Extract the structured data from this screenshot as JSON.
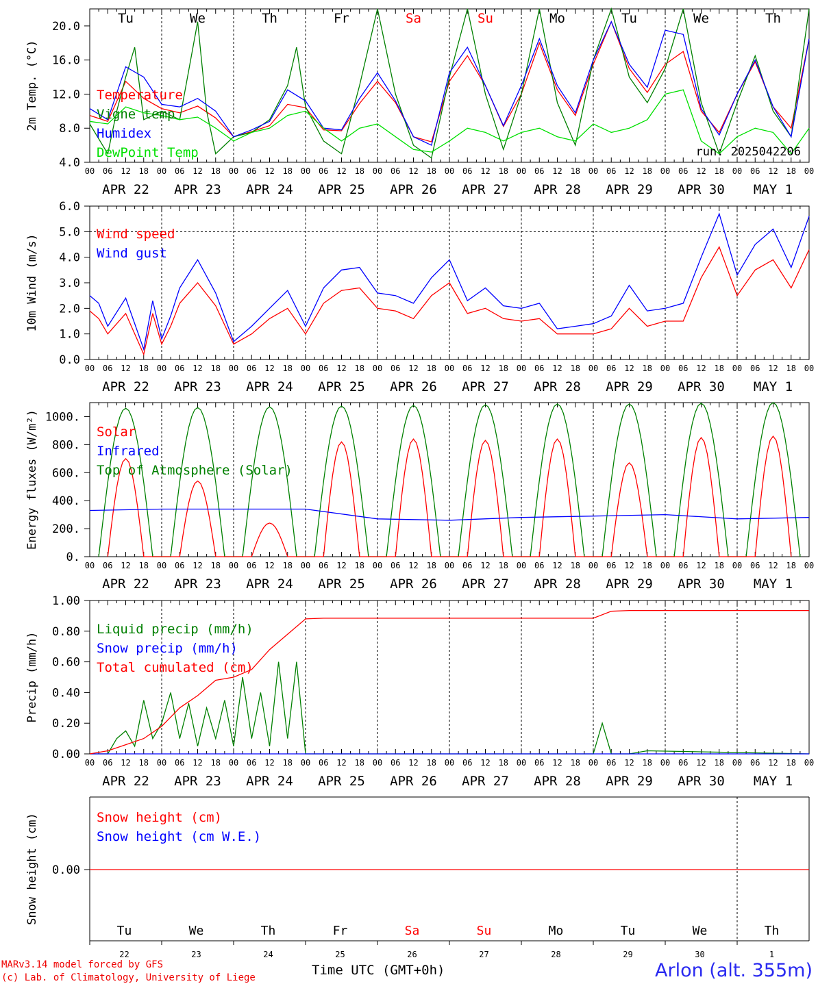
{
  "footer": {
    "model": "MARv3.14 model forced by GFS",
    "credit": "(c) Lab. of Climatology, University of Liege",
    "xaxis_title": "Time UTC (GMT+0h)",
    "station": "Arlon (alt. 355m)"
  },
  "run_label": "run: 2025042206",
  "weekdays": [
    "Tu",
    "We",
    "Th",
    "Fr",
    "Sa",
    "Su",
    "Mo",
    "Tu",
    "We",
    "Th"
  ],
  "weekend_days": [
    "Sa",
    "Su"
  ],
  "date_labels": [
    "APR 22",
    "APR 23",
    "APR 24",
    "APR 25",
    "APR 26",
    "APR 27",
    "APR 28",
    "APR 29",
    "APR 30",
    "MAY  1"
  ],
  "day_numbers": [
    "22",
    "23",
    "24",
    "25",
    "26",
    "27",
    "28",
    "29",
    "30",
    "1"
  ],
  "hour_ticks": [
    "00",
    "06",
    "12",
    "18"
  ],
  "colors": {
    "red": "#ff0000",
    "blue": "#0000ff",
    "green": "#008000",
    "lightgreen": "#00e000"
  },
  "chart_data": [
    {
      "type": "line",
      "ylabel": "2m Temp. (°C)",
      "ylim": [
        4,
        22
      ],
      "yticks": [
        "4.0",
        "8.0",
        "12.0",
        "16.0",
        "20.0"
      ],
      "x_unit": "hours since APR 22 00 UTC",
      "series": [
        {
          "name": "Temperature",
          "color": "red",
          "x": [
            0,
            6,
            12,
            18,
            24,
            30,
            36,
            42,
            48,
            54,
            60,
            66,
            72,
            78,
            84,
            90,
            96,
            102,
            108,
            114,
            120,
            126,
            132,
            138,
            144,
            150,
            156,
            162,
            168,
            174,
            180,
            186,
            192,
            198,
            204,
            210,
            216,
            222,
            228,
            234,
            240
          ],
          "values": [
            9.5,
            8.8,
            13.5,
            11.5,
            10.3,
            9.8,
            10.6,
            9.2,
            7.0,
            7.6,
            8.3,
            10.8,
            10.4,
            7.8,
            7.7,
            10.9,
            13.5,
            11.0,
            7.0,
            6.4,
            13.5,
            16.5,
            13.0,
            8.2,
            12.0,
            18.0,
            12.5,
            9.5,
            15.5,
            20.5,
            15.0,
            12.2,
            15.5,
            17.0,
            10.0,
            7.5,
            12.0,
            15.8,
            10.5,
            8.0,
            18.5
          ]
        },
        {
          "name": "Vigne temp",
          "color": "green",
          "x": [
            0,
            6,
            9,
            12,
            15,
            18,
            24,
            30,
            36,
            39,
            42,
            45,
            48,
            54,
            60,
            66,
            69,
            72,
            78,
            84,
            90,
            96,
            102,
            108,
            114,
            120,
            126,
            132,
            138,
            144,
            150,
            156,
            162,
            168,
            174,
            180,
            186,
            192,
            198,
            204,
            210,
            216,
            222,
            228,
            234,
            240
          ],
          "values": [
            8.5,
            5.0,
            10.0,
            14.0,
            17.5,
            9.0,
            10.0,
            9.0,
            20.5,
            10.0,
            5.0,
            6.0,
            7.0,
            7.5,
            9.0,
            13.0,
            17.5,
            10.5,
            6.5,
            5.0,
            13.0,
            22.0,
            12.0,
            6.0,
            4.5,
            14.0,
            22.0,
            12.0,
            5.5,
            12.0,
            22.0,
            11.0,
            6.0,
            16.0,
            22.0,
            14.0,
            11.0,
            15.0,
            22.0,
            11.0,
            5.0,
            11.0,
            16.5,
            10.0,
            7.0,
            22.0
          ]
        },
        {
          "name": "Humidex",
          "color": "blue",
          "x": [
            0,
            6,
            12,
            18,
            24,
            30,
            36,
            42,
            48,
            54,
            60,
            66,
            72,
            78,
            84,
            90,
            96,
            102,
            108,
            114,
            120,
            126,
            132,
            138,
            144,
            150,
            156,
            162,
            168,
            174,
            180,
            186,
            192,
            198,
            204,
            210,
            216,
            222,
            228,
            234,
            240
          ],
          "values": [
            10.3,
            9.0,
            15.2,
            14.0,
            10.8,
            10.5,
            11.5,
            10.0,
            7.0,
            7.8,
            8.8,
            12.5,
            11.2,
            8.0,
            7.8,
            11.5,
            14.5,
            11.2,
            7.0,
            6.0,
            14.5,
            17.5,
            13.0,
            8.3,
            13.0,
            18.5,
            13.0,
            9.8,
            16.0,
            20.5,
            15.5,
            12.8,
            19.5,
            19.0,
            10.3,
            7.2,
            12.0,
            16.0,
            10.5,
            7.0,
            18.5
          ]
        },
        {
          "name": "DewPoint Temp",
          "color": "lightgreen",
          "x": [
            0,
            6,
            12,
            18,
            24,
            30,
            36,
            42,
            48,
            54,
            60,
            66,
            72,
            78,
            84,
            90,
            96,
            102,
            108,
            114,
            120,
            126,
            132,
            138,
            144,
            150,
            156,
            162,
            168,
            174,
            180,
            186,
            192,
            198,
            204,
            210,
            216,
            222,
            228,
            234,
            240
          ],
          "values": [
            8.8,
            8.5,
            10.5,
            9.8,
            9.5,
            9.0,
            9.3,
            8.0,
            6.5,
            7.5,
            8.0,
            9.5,
            10.0,
            8.0,
            6.5,
            8.0,
            8.5,
            7.0,
            5.5,
            5.2,
            6.5,
            8.0,
            7.5,
            6.5,
            7.5,
            8.0,
            7.0,
            6.5,
            8.5,
            7.5,
            8.0,
            9.0,
            12.0,
            12.5,
            6.5,
            5.0,
            7.0,
            8.0,
            7.5,
            5.0,
            8.0
          ]
        }
      ]
    },
    {
      "type": "line",
      "ylabel": "10m Wind (m/s)",
      "ylim": [
        0,
        6
      ],
      "yticks": [
        "0.0",
        "1.0",
        "2.0",
        "3.0",
        "4.0",
        "5.0",
        "6.0"
      ],
      "hline": 5,
      "series": [
        {
          "name": "Wind speed",
          "color": "red",
          "x": [
            0,
            3,
            6,
            12,
            18,
            21,
            24,
            27,
            30,
            36,
            42,
            48,
            54,
            60,
            66,
            72,
            78,
            84,
            90,
            96,
            102,
            108,
            114,
            120,
            126,
            132,
            138,
            144,
            150,
            156,
            162,
            168,
            174,
            180,
            186,
            192,
            198,
            204,
            210,
            216,
            222,
            228,
            234,
            240
          ],
          "values": [
            1.9,
            1.6,
            1.0,
            1.8,
            0.2,
            1.8,
            0.6,
            1.3,
            2.2,
            3.0,
            2.1,
            0.6,
            1.0,
            1.6,
            2.0,
            1.0,
            2.2,
            2.7,
            2.8,
            2.0,
            1.9,
            1.6,
            2.5,
            3.0,
            1.8,
            2.0,
            1.6,
            1.5,
            1.6,
            1.0,
            1.0,
            1.0,
            1.2,
            2.0,
            1.3,
            1.5,
            1.5,
            3.2,
            4.4,
            2.5,
            3.5,
            3.9,
            2.8,
            4.3
          ]
        },
        {
          "name": "Wind gust",
          "color": "blue",
          "x": [
            0,
            3,
            6,
            12,
            18,
            21,
            24,
            27,
            30,
            36,
            42,
            48,
            54,
            60,
            66,
            72,
            78,
            84,
            90,
            96,
            102,
            108,
            114,
            120,
            126,
            132,
            138,
            144,
            150,
            156,
            162,
            168,
            174,
            180,
            186,
            192,
            198,
            204,
            210,
            216,
            222,
            228,
            234,
            240
          ],
          "values": [
            2.5,
            2.2,
            1.3,
            2.4,
            0.4,
            2.3,
            0.8,
            1.7,
            2.8,
            3.9,
            2.6,
            0.7,
            1.3,
            2.0,
            2.7,
            1.3,
            2.8,
            3.5,
            3.6,
            2.6,
            2.5,
            2.2,
            3.2,
            3.9,
            2.3,
            2.8,
            2.1,
            2.0,
            2.2,
            1.2,
            1.3,
            1.4,
            1.7,
            2.9,
            1.9,
            2.0,
            2.2,
            4.0,
            5.7,
            3.3,
            4.5,
            5.1,
            3.6,
            5.6
          ]
        }
      ]
    },
    {
      "type": "line",
      "ylabel": "Energy fluxes (W/m²)",
      "ylim": [
        0,
        1100
      ],
      "yticks": [
        "0.",
        "200.",
        "400.",
        "600.",
        "800.",
        "1000."
      ],
      "series": [
        {
          "name": "Solar",
          "color": "red",
          "daily_peaks": [
            700,
            540,
            240,
            820,
            840,
            830,
            840,
            670,
            850,
            860
          ]
        },
        {
          "name": "Infrared",
          "color": "blue",
          "x": [
            0,
            24,
            48,
            72,
            96,
            120,
            144,
            168,
            192,
            216,
            240
          ],
          "values": [
            330,
            340,
            340,
            340,
            270,
            260,
            280,
            290,
            300,
            270,
            280
          ]
        },
        {
          "name": "Top of Atmosphere (Solar)",
          "color": "green",
          "daily_peaks": [
            1060,
            1065,
            1070,
            1075,
            1080,
            1085,
            1090,
            1090,
            1095,
            1100
          ]
        }
      ]
    },
    {
      "type": "line",
      "ylabel": "Precip (mm/h)",
      "ylim": [
        0,
        1.0
      ],
      "yticks": [
        "0.00",
        "0.20",
        "0.40",
        "0.60",
        "0.80",
        "1.00"
      ],
      "series": [
        {
          "name": "Liquid precip (mm/h)",
          "color": "green",
          "x": [
            0,
            6,
            9,
            12,
            15,
            18,
            21,
            24,
            27,
            30,
            33,
            36,
            39,
            42,
            45,
            48,
            51,
            54,
            57,
            60,
            63,
            66,
            69,
            72,
            78,
            84,
            168,
            171,
            174,
            180,
            186,
            240
          ],
          "values": [
            0,
            0,
            0.1,
            0.15,
            0.05,
            0.35,
            0.1,
            0.2,
            0.4,
            0.1,
            0.33,
            0.05,
            0.3,
            0.1,
            0.35,
            0.05,
            0.5,
            0.1,
            0.4,
            0.05,
            0.6,
            0.1,
            0.6,
            0.0,
            0,
            0,
            0,
            0.2,
            0.0,
            0,
            0.02,
            0
          ]
        },
        {
          "name": "Snow precip (mm/h)",
          "color": "blue",
          "x": [
            0,
            240
          ],
          "values": [
            0,
            0
          ]
        },
        {
          "name": "Total cumulated (cm)",
          "color": "red",
          "x": [
            0,
            6,
            12,
            18,
            24,
            30,
            36,
            42,
            48,
            54,
            60,
            66,
            72,
            78,
            84,
            168,
            174,
            180,
            240
          ],
          "values": [
            0,
            0.02,
            0.06,
            0.1,
            0.18,
            0.3,
            0.38,
            0.48,
            0.5,
            0.55,
            0.68,
            0.78,
            0.88,
            0.885,
            0.885,
            0.885,
            0.93,
            0.935,
            0.935
          ]
        }
      ]
    },
    {
      "type": "line",
      "ylabel": "Snow height (cm)",
      "yticks": [
        "0.00"
      ],
      "series": [
        {
          "name": "Snow height (cm)",
          "color": "red",
          "x": [
            0,
            240
          ],
          "values": [
            0,
            0
          ]
        },
        {
          "name": "Snow height (cm W.E.)",
          "color": "blue",
          "x": [],
          "values": []
        }
      ]
    }
  ]
}
